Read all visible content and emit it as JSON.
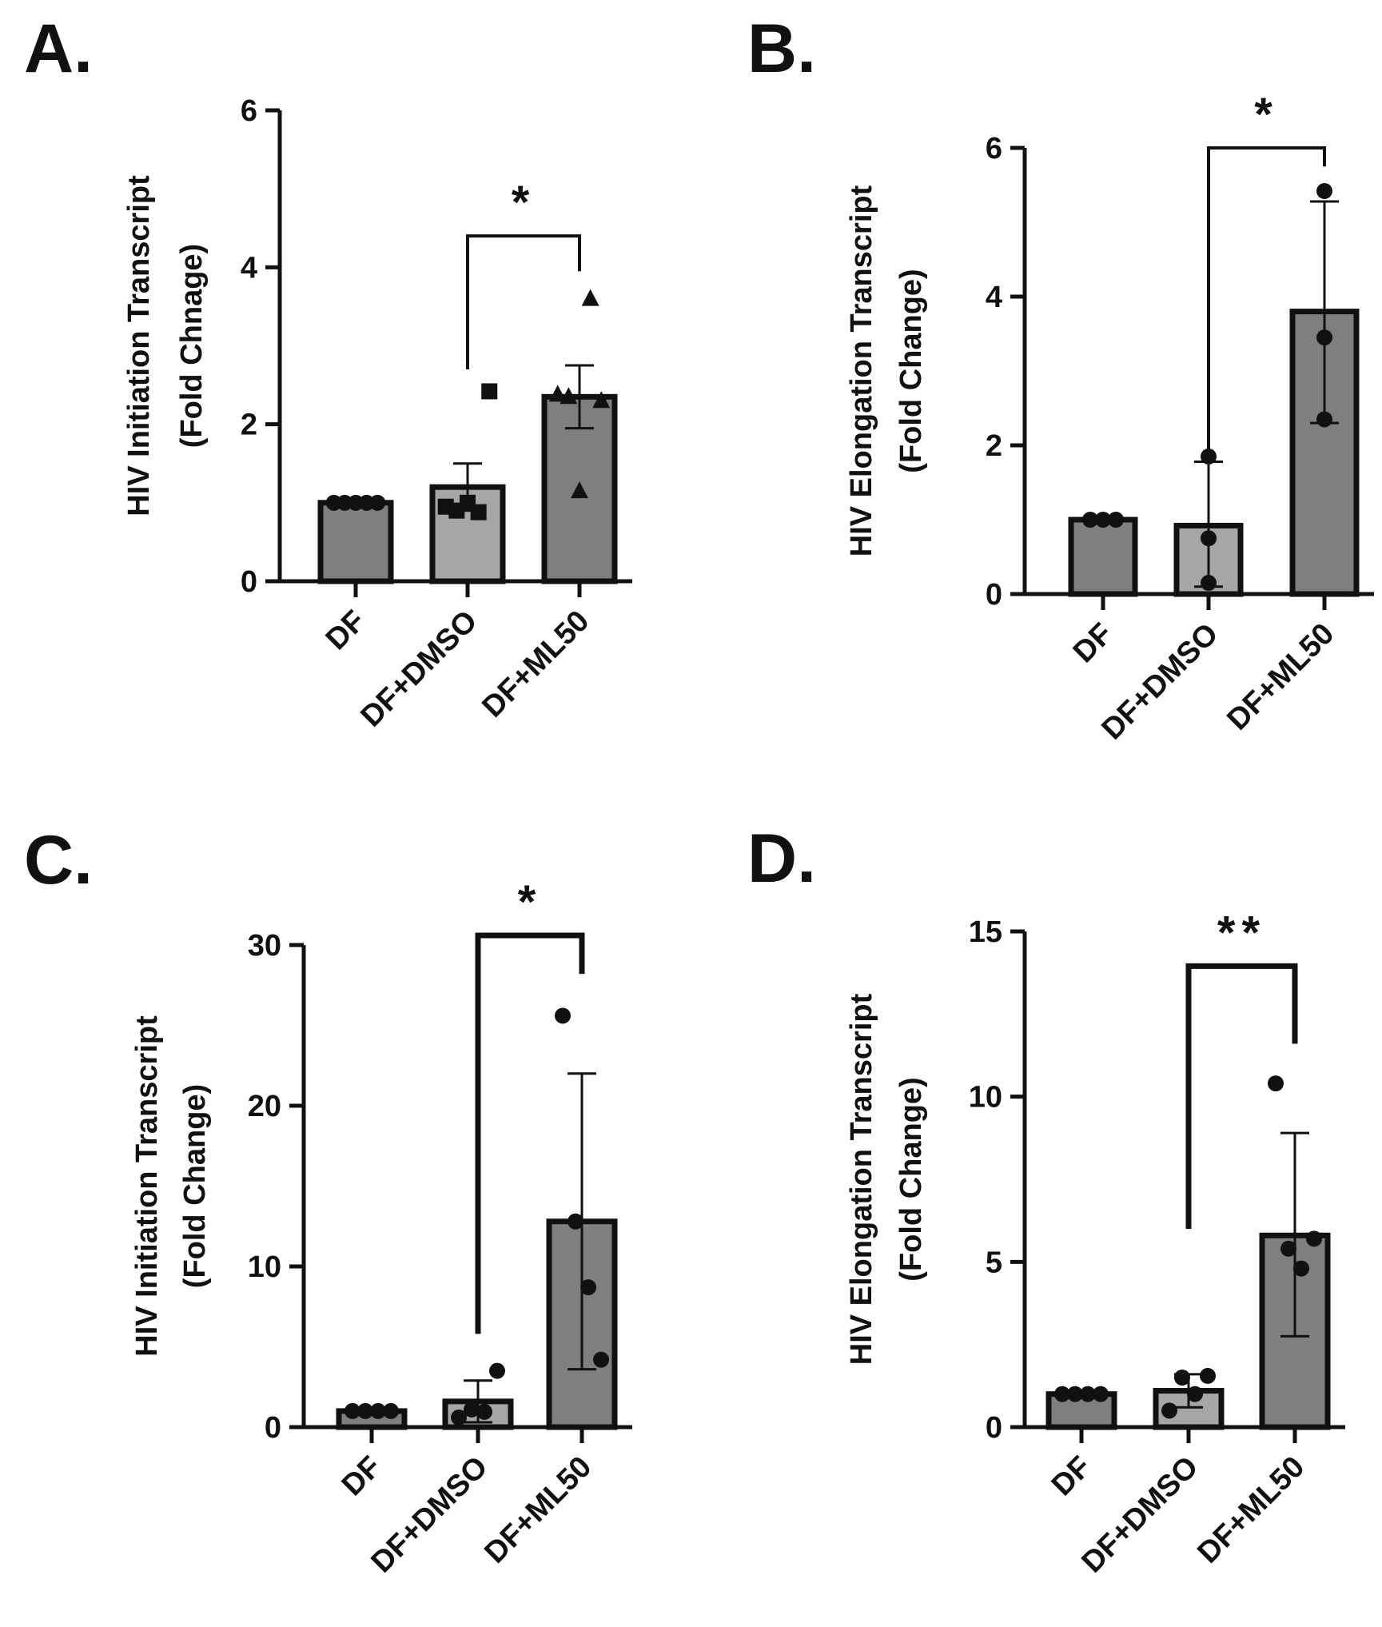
{
  "colors": {
    "bar_dark": "#7f7f7f",
    "bar_light": "#a6a6a6",
    "ink": "#111111"
  },
  "chart_data": [
    {
      "panel": "A.",
      "type": "bar",
      "title": "",
      "xlabel": "",
      "ylabel_line1": "HIV Initiation Transcript",
      "ylabel_line2": "(Fold Chnage)",
      "categories": [
        "DF",
        "DF+DMSO",
        "DF+ML50"
      ],
      "values": [
        1.0,
        1.2,
        2.35
      ],
      "error": [
        [
          1.0,
          1.0
        ],
        [
          0.9,
          1.5
        ],
        [
          1.95,
          2.75
        ]
      ],
      "points": [
        [
          1,
          1,
          1,
          1,
          1
        ],
        [
          0.95,
          0.9,
          1.0,
          0.88,
          2.42
        ],
        [
          2.38,
          2.35,
          1.15,
          3.6,
          2.3
        ]
      ],
      "markers": [
        "circle",
        "square",
        "triangle"
      ],
      "ylim": [
        0,
        6
      ],
      "yticks": [
        0,
        2,
        4,
        6
      ],
      "ytick_labels": [
        "0",
        "2",
        "4",
        "6"
      ],
      "significance": {
        "from": 1,
        "to": 2,
        "label": "*",
        "y": 4.4,
        "left_drop": 2.7,
        "right_drop": 3.95
      }
    },
    {
      "panel": "B.",
      "type": "bar",
      "title": "",
      "xlabel": "",
      "ylabel_line1": "HIV Elongation Transcript",
      "ylabel_line2": "(Fold Change)",
      "categories": [
        "DF",
        "DF+DMSO",
        "DF+ML50"
      ],
      "values": [
        1.0,
        0.92,
        3.8
      ],
      "error": [
        [
          1.0,
          1.0
        ],
        [
          0.1,
          1.78
        ],
        [
          2.3,
          5.28
        ]
      ],
      "points": [
        [
          1,
          1,
          1
        ],
        [
          1.85,
          0.75,
          0.15
        ],
        [
          5.42,
          3.45,
          2.35
        ]
      ],
      "markers": [
        "circle",
        "circle",
        "circle"
      ],
      "ylim": [
        0,
        6
      ],
      "yticks": [
        0,
        2,
        4,
        6
      ],
      "ytick_labels": [
        "0",
        "2",
        "4",
        "6"
      ],
      "significance": {
        "from": 1,
        "to": 2,
        "label": "*",
        "y": 6.0,
        "left_drop": 1.95,
        "right_drop": 5.75
      }
    },
    {
      "panel": "C.",
      "type": "bar",
      "title": "",
      "xlabel": "",
      "ylabel_line1": "HIV Initiation Transcript",
      "ylabel_line2": "(Fold Change)",
      "categories": [
        "DF",
        "DF+DMSO",
        "DF+ML50"
      ],
      "values": [
        1.0,
        1.6,
        12.8
      ],
      "error": [
        [
          1.0,
          1.0
        ],
        [
          0.3,
          2.9
        ],
        [
          3.6,
          22.0
        ]
      ],
      "points": [
        [
          1,
          1,
          1,
          1
        ],
        [
          0.6,
          1.1,
          0.95,
          3.5
        ],
        [
          25.6,
          12.8,
          8.7,
          4.2
        ]
      ],
      "markers": [
        "circle",
        "circle",
        "circle"
      ],
      "ylim": [
        0,
        30
      ],
      "yticks": [
        0,
        10,
        20,
        30
      ],
      "ytick_labels": [
        "0",
        "10",
        "20",
        "30"
      ],
      "significance": {
        "from": 1,
        "to": 2,
        "label": "*",
        "y": 30.6,
        "left_drop": 5.8,
        "right_drop": 28.2
      }
    },
    {
      "panel": "D.",
      "type": "bar",
      "title": "",
      "xlabel": "",
      "ylabel_line1": "HIV Elongation Transcript",
      "ylabel_line2": "(Fold Change)",
      "categories": [
        "DF",
        "DF+DMSO",
        "DF+ML50"
      ],
      "values": [
        1.0,
        1.1,
        5.8
      ],
      "error": [
        [
          1.0,
          1.0
        ],
        [
          0.6,
          1.6
        ],
        [
          2.75,
          8.9
        ]
      ],
      "points": [
        [
          1,
          1,
          1,
          1
        ],
        [
          0.5,
          1.5,
          1.0,
          1.55
        ],
        [
          10.4,
          5.4,
          4.8,
          5.7
        ]
      ],
      "markers": [
        "circle",
        "circle",
        "circle"
      ],
      "ylim": [
        0,
        15
      ],
      "yticks": [
        0,
        5,
        10,
        15
      ],
      "ytick_labels": [
        "0",
        "5",
        "10",
        "15"
      ],
      "significance": {
        "from": 1,
        "to": 2,
        "label": "**",
        "y": 13.95,
        "left_drop": 6.0,
        "right_drop": 11.6
      }
    }
  ]
}
